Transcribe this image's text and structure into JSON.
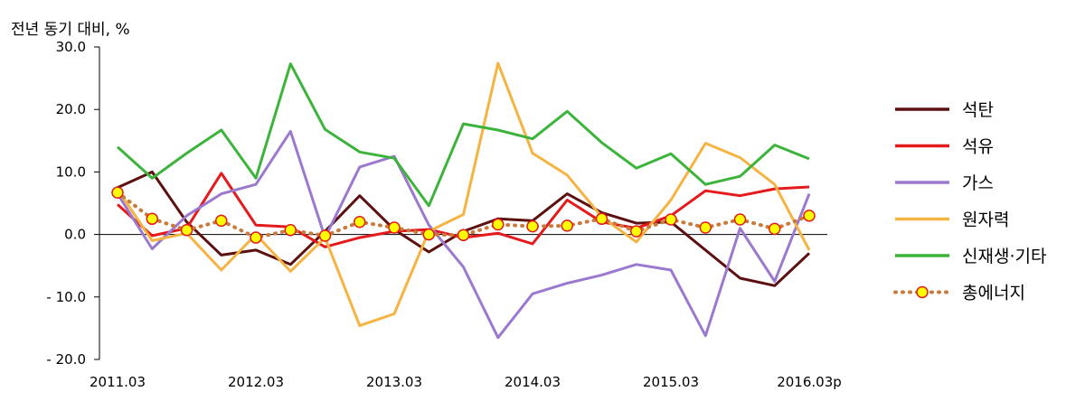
{
  "chart_data": {
    "type": "line",
    "ylabel": "전년 동기 대비, %",
    "ylim": [
      -20,
      30
    ],
    "yticks": [
      {
        "value": 30,
        "label": "30.0"
      },
      {
        "value": 20,
        "label": "20.0"
      },
      {
        "value": 10,
        "label": "10.0"
      },
      {
        "value": 0,
        "label": "0.0"
      },
      {
        "value": -10,
        "label": "- 10.0"
      },
      {
        "value": -20,
        "label": "- 20.0"
      }
    ],
    "x_tick_labels": [
      {
        "index": 0,
        "label": "2011.03"
      },
      {
        "index": 4,
        "label": "2012.03"
      },
      {
        "index": 8,
        "label": "2013.03"
      },
      {
        "index": 12,
        "label": "2014.03"
      },
      {
        "index": 16,
        "label": "2015.03"
      },
      {
        "index": 20,
        "label": "2016.03p"
      }
    ],
    "x_count": 21,
    "legend_position": "right",
    "series": [
      {
        "name": "석탄",
        "color": "#5c1010",
        "style": "line",
        "values": [
          7.5,
          10.0,
          2.0,
          -3.3,
          -2.5,
          -4.8,
          0.5,
          6.2,
          0.8,
          -2.8,
          0.5,
          2.5,
          2.2,
          6.5,
          3.5,
          1.8,
          2.0,
          -2.5,
          -7.0,
          -8.2,
          -3.0
        ]
      },
      {
        "name": "석유",
        "color": "#e41a1c",
        "style": "line",
        "values": [
          4.8,
          -0.2,
          1.0,
          9.8,
          1.5,
          1.2,
          -2.0,
          -0.5,
          0.5,
          0.8,
          -0.5,
          0.2,
          -1.5,
          5.5,
          2.0,
          1.0,
          3.0,
          7.0,
          6.2,
          7.3,
          7.6
        ]
      },
      {
        "name": "가스",
        "color": "#9b79cf",
        "style": "line",
        "values": [
          6.5,
          -2.3,
          3.0,
          6.5,
          8.0,
          16.5,
          -0.5,
          10.8,
          12.5,
          1.5,
          -5.2,
          -16.5,
          -9.5,
          -7.8,
          -6.5,
          -4.8,
          -5.7,
          -16.2,
          1.0,
          -7.5,
          6.5
        ]
      },
      {
        "name": "원자력",
        "color": "#f5b342",
        "style": "line",
        "values": [
          7.2,
          -1.0,
          0.2,
          -5.7,
          0.0,
          -5.9,
          -0.5,
          -14.6,
          -12.7,
          0.5,
          3.2,
          27.4,
          13.0,
          9.5,
          2.8,
          -1.2,
          5.5,
          14.6,
          12.3,
          8.0,
          -2.5
        ]
      },
      {
        "name": "신재생·기타",
        "color": "#3cb43c",
        "style": "line",
        "values": [
          14.0,
          9.0,
          13.0,
          16.7,
          9.0,
          27.3,
          16.8,
          13.2,
          12.2,
          4.6,
          17.7,
          16.7,
          15.3,
          19.7,
          14.7,
          10.6,
          12.9,
          8.0,
          9.3,
          14.3,
          12.1
        ]
      },
      {
        "name": "총에너지",
        "color": "#c87a3c",
        "style": "dotted-markers",
        "marker_fill": "#ffff00",
        "marker_stroke": "#e41a1c",
        "values": [
          6.7,
          2.5,
          0.7,
          2.2,
          -0.5,
          0.7,
          -0.2,
          2.0,
          1.1,
          0.0,
          -0.1,
          1.6,
          1.3,
          1.4,
          2.5,
          0.5,
          2.4,
          1.1,
          2.4,
          0.9,
          3.0
        ]
      }
    ]
  }
}
